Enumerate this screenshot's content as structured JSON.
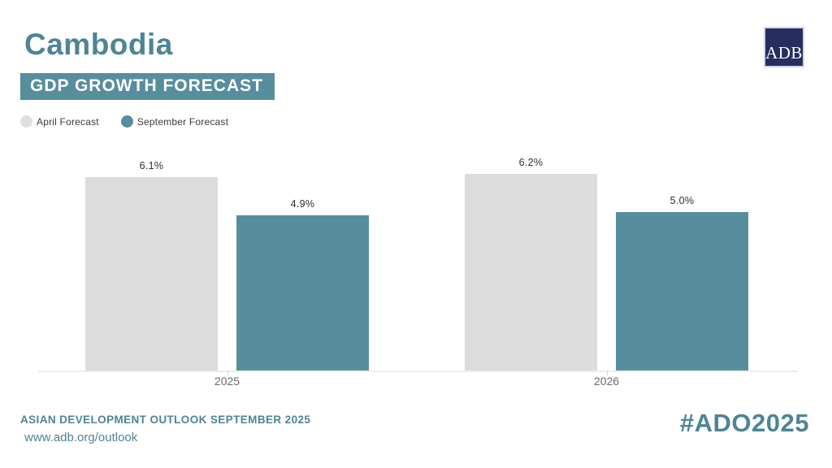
{
  "header": {
    "title": "Cambodia",
    "subtitle_badge": "GDP GROWTH FORECAST",
    "logo_text": "ADB"
  },
  "legend": {
    "items": [
      {
        "label": "April Forecast",
        "color": "#dedede"
      },
      {
        "label": "September Forecast",
        "color": "#578e9e"
      }
    ]
  },
  "chart_data": {
    "type": "bar",
    "title": "GDP GROWTH FORECAST",
    "categories": [
      "2025",
      "2026"
    ],
    "series": [
      {
        "name": "April Forecast",
        "values": [
          6.1,
          6.2
        ],
        "labels": [
          "6.1%",
          "6.2%"
        ],
        "color": "#dcdcdc"
      },
      {
        "name": "September Forecast",
        "values": [
          4.9,
          5.0
        ],
        "labels": [
          "4.9%",
          "5.0%"
        ],
        "color": "#578e9e"
      }
    ],
    "xlabel": "",
    "ylabel": "",
    "ylim": [
      0,
      6.8
    ],
    "grid": false,
    "legend_position": "top-left",
    "value_labels_shown": true
  },
  "footer": {
    "line1": "ASIAN DEVELOPMENT OUTLOOK SEPTEMBER 2025",
    "line2": "www.adb.org/outlook",
    "hashtag": "#ADO2025"
  },
  "colors": {
    "accent_teal": "#4e8496",
    "badge_background": "#578e9e",
    "bar_teal": "#578e9e",
    "bar_gray": "#dcdcdc",
    "logo_navy": "#252e5f",
    "axis_line": "#ededed",
    "tick_label": "#6b6b6b",
    "value_label": "#2e2e2e"
  }
}
